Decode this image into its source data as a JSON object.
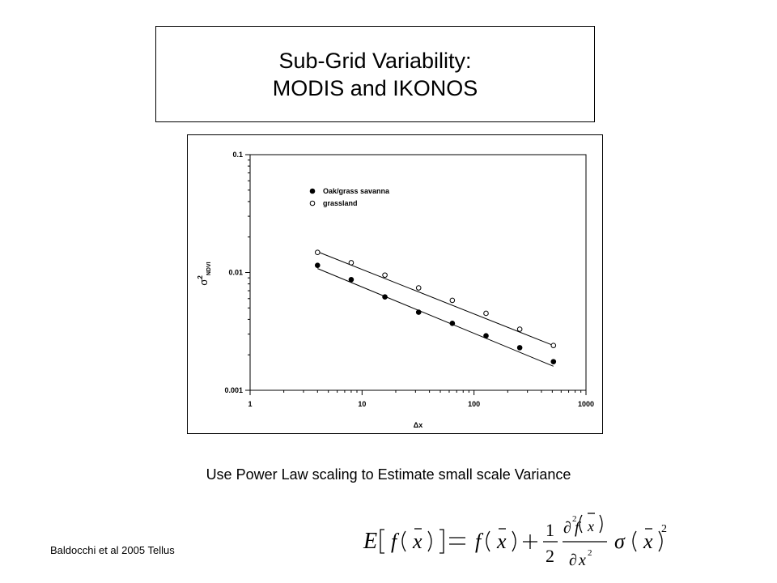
{
  "title": {
    "line1": "Sub-Grid Variability:",
    "line2": "MODIS and IKONOS"
  },
  "caption": "Use Power Law scaling to Estimate small scale Variance",
  "citation": "Baldocchi et al 2005 Tellus",
  "equation": {
    "E": "E",
    "f": "f",
    "x": "x",
    "one": "1",
    "two": "2",
    "partial": "∂",
    "sigma": "σ"
  },
  "chart_data": {
    "type": "scatter",
    "x_scale": "log",
    "y_scale": "log",
    "xlabel": "Δx",
    "ylabel": "σ²NDVI",
    "ylabel_main": "σ",
    "ylabel_sup": "2",
    "ylabel_sub": "NDVI",
    "xlim": [
      1,
      1000
    ],
    "ylim": [
      0.001,
      0.1
    ],
    "x_ticks": [
      "1",
      "10",
      "100",
      "1000"
    ],
    "y_ticks": [
      "0.001",
      "0.01",
      "0.1"
    ],
    "legend_position": "top-left",
    "grid": false,
    "series": [
      {
        "name": "Oak/grass savanna",
        "marker": "filled-circle",
        "x": [
          4,
          8,
          16,
          32,
          64,
          128,
          256,
          512
        ],
        "y": [
          0.0115,
          0.0087,
          0.0062,
          0.0046,
          0.0037,
          0.0029,
          0.0023,
          0.00175
        ],
        "fit": [
          [
            4,
            0.0108
          ],
          [
            512,
            0.0016
          ]
        ]
      },
      {
        "name": "grassland",
        "marker": "open-circle",
        "x": [
          4,
          8,
          16,
          32,
          64,
          128,
          256,
          512
        ],
        "y": [
          0.0148,
          0.0121,
          0.0095,
          0.0074,
          0.0058,
          0.0045,
          0.0033,
          0.0024
        ],
        "fit": [
          [
            4,
            0.015
          ],
          [
            512,
            0.0024
          ]
        ]
      }
    ]
  }
}
